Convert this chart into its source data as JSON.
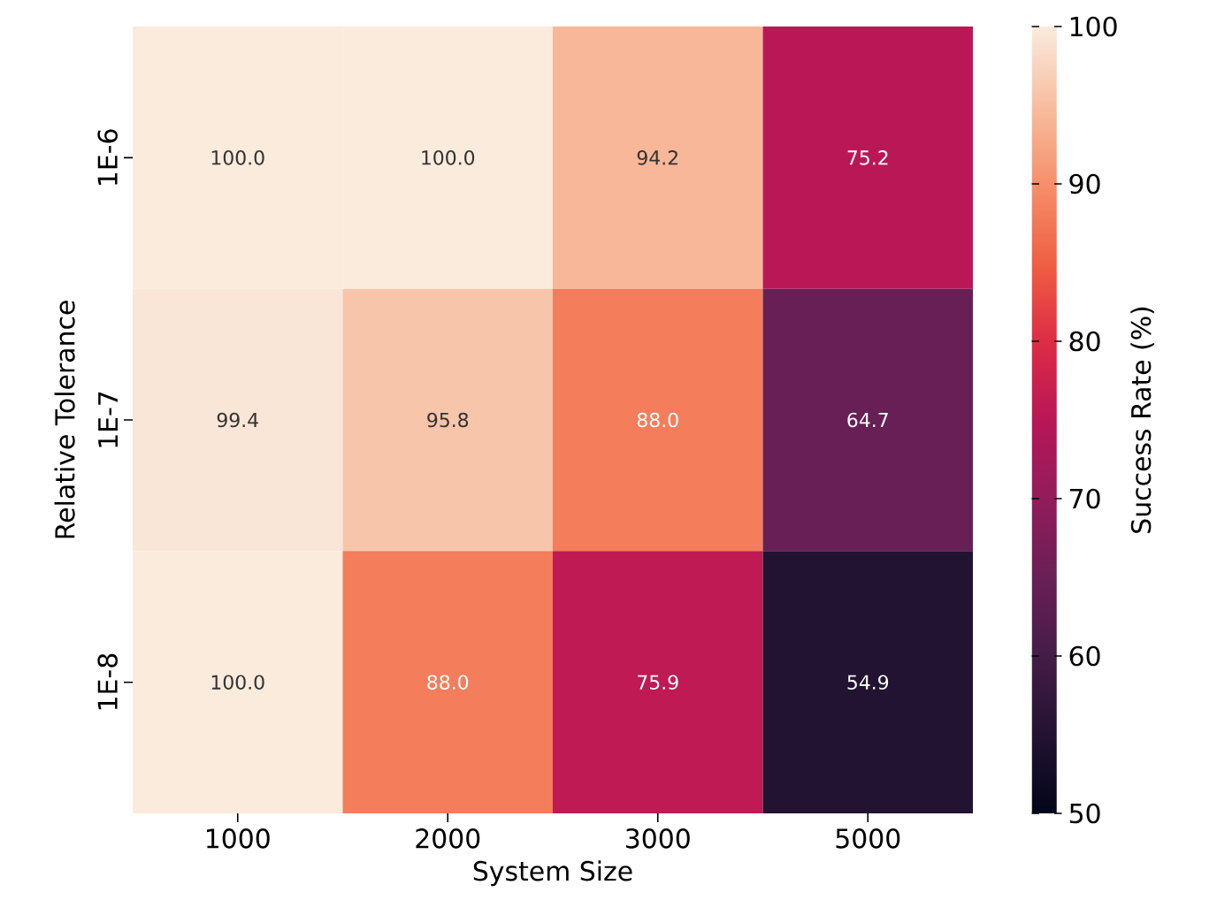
{
  "chart_data": {
    "type": "heatmap",
    "xlabel": "System Size",
    "ylabel": "Relative Tolerance",
    "clabel": "Success Rate (%)",
    "categories": [
      "1000",
      "2000",
      "3000",
      "5000"
    ],
    "y_categories": [
      "1E-6",
      "1E-7",
      "1E-8"
    ],
    "cells": [
      [
        100.0,
        100.0,
        94.2,
        75.2
      ],
      [
        99.4,
        95.8,
        88.0,
        64.7
      ],
      [
        100.0,
        88.0,
        75.9,
        54.9
      ]
    ],
    "cell_labels": [
      [
        "100.0",
        "100.0",
        "94.2",
        "75.2"
      ],
      [
        "99.4",
        "95.8",
        "88.0",
        "64.7"
      ],
      [
        "100.0",
        "88.0",
        "75.9",
        "54.9"
      ]
    ],
    "clim": [
      50,
      100
    ],
    "cticks": [
      50,
      60,
      70,
      80,
      90,
      100
    ]
  }
}
